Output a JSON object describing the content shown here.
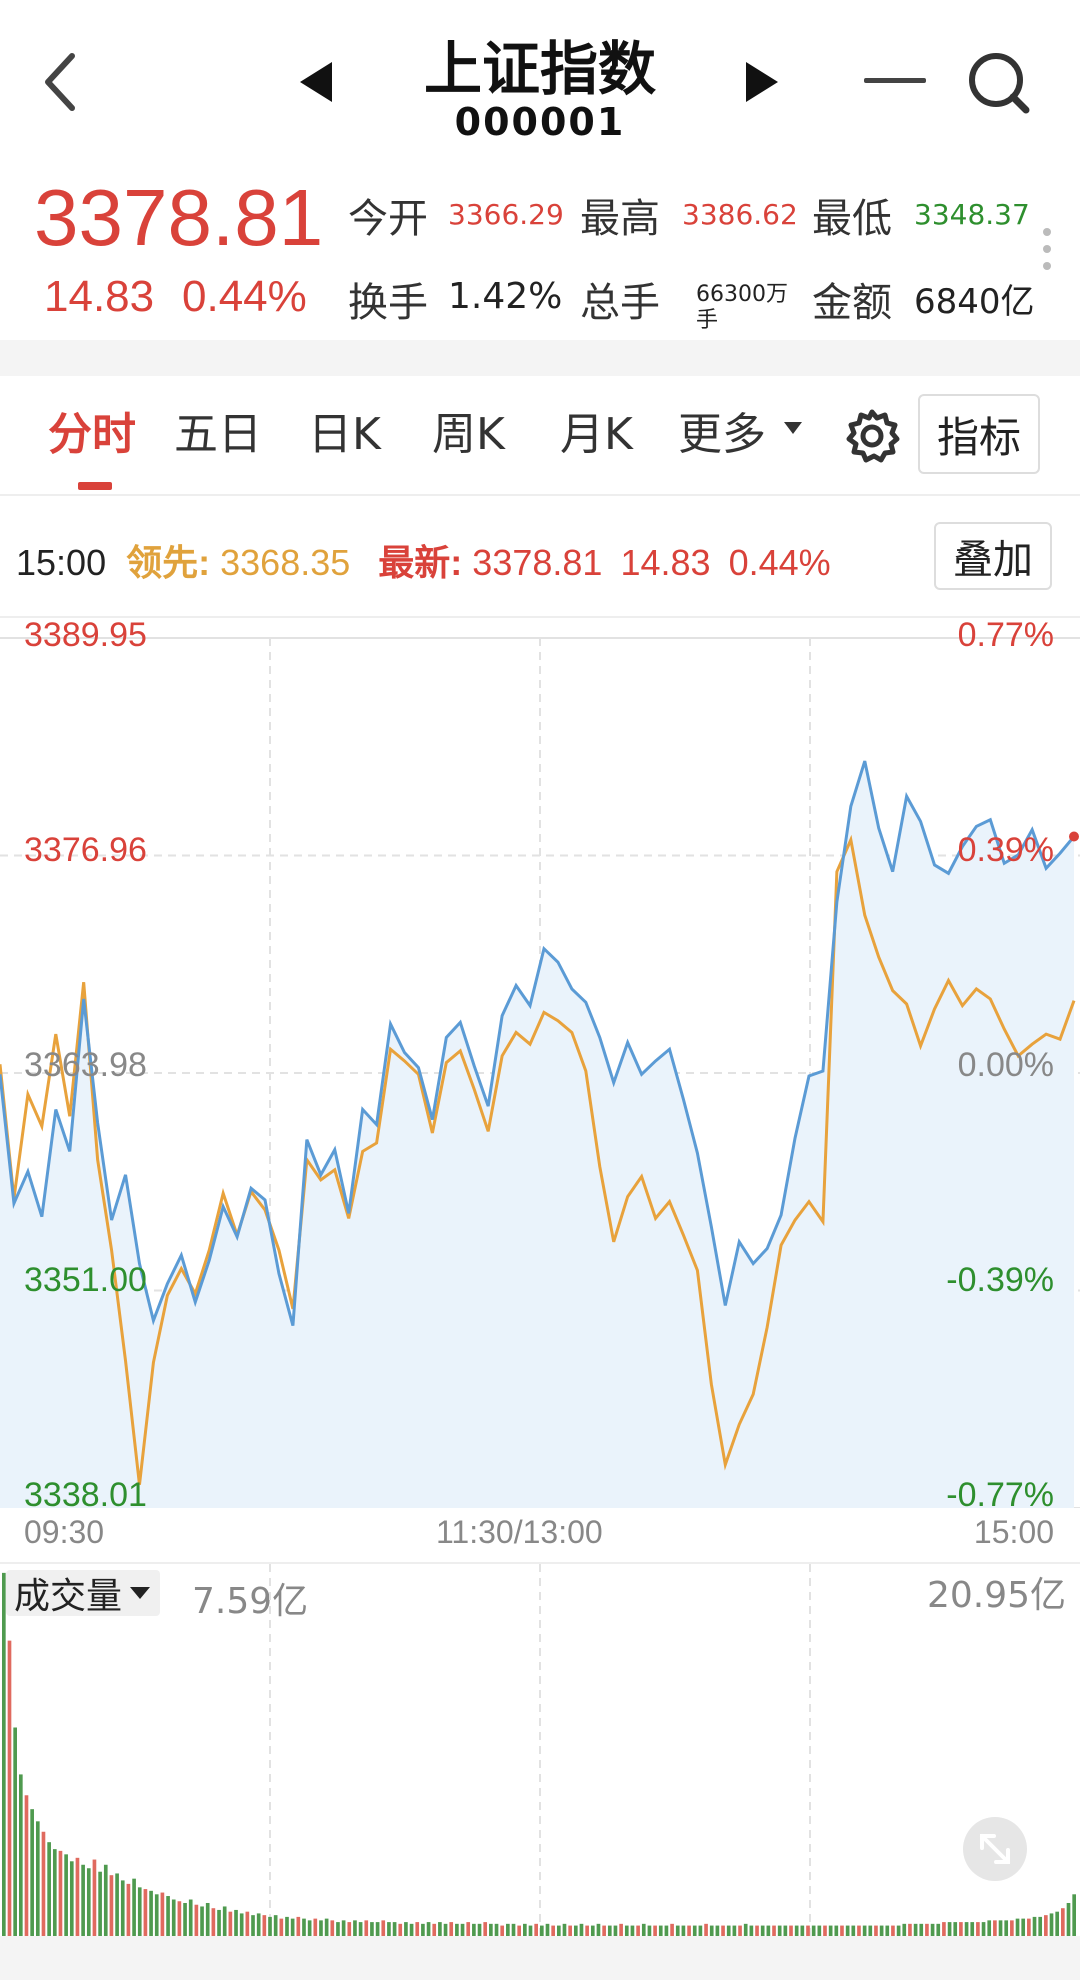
{
  "header": {
    "title": "上证指数",
    "code": "000001"
  },
  "quote": {
    "price": "3378.81",
    "change": "14.83",
    "change_pct": "0.44%",
    "stats": [
      {
        "label": "今开",
        "value": "3366.29",
        "color": "red"
      },
      {
        "label": "最高",
        "value": "3386.62",
        "color": "red"
      },
      {
        "label": "最低",
        "value": "3348.37",
        "color": "green"
      },
      {
        "label": "换手",
        "value": "1.42%",
        "color": "dark"
      },
      {
        "label": "总手",
        "value": "66300万手",
        "color": "dark"
      },
      {
        "label": "金额",
        "value": "6840亿",
        "color": "dark"
      }
    ]
  },
  "tabs": {
    "items": [
      "分时",
      "五日",
      "日K",
      "周K",
      "月K",
      "更多"
    ],
    "active": "分时",
    "indicator_label": "指标"
  },
  "info_bar": {
    "time": "15:00",
    "lead_label": "领先:",
    "lead_value": "3368.35",
    "latest_label": "最新:",
    "latest_value": "3378.81",
    "latest_change": "14.83",
    "latest_pct": "0.44%",
    "overlay_label": "叠加"
  },
  "chart_data": {
    "type": "line",
    "x_ticks": [
      "09:30",
      "11:30/13:00",
      "15:00"
    ],
    "y_ticks": [
      "3389.95",
      "3376.96",
      "3363.98",
      "3351.00",
      "3338.01"
    ],
    "y_pct_ticks": [
      "0.77%",
      "0.39%",
      "0.00%",
      "-0.39%",
      "-0.77%"
    ],
    "ylim": [
      3338.01,
      3389.95
    ],
    "prev_close": 3363.98,
    "series": [
      {
        "color": "#5b9bd5",
        "values": [
          3363.9,
          3356.2,
          3358.1,
          3355.4,
          3361.8,
          3359.3,
          3368.4,
          3361.0,
          3355.2,
          3357.9,
          3352.6,
          3349.2,
          3351.4,
          3353.1,
          3350.3,
          3352.8,
          3356.0,
          3354.2,
          3357.1,
          3356.4,
          3352.0,
          3348.9,
          3360.0,
          3357.9,
          3359.4,
          3355.6,
          3361.8,
          3360.9,
          3366.9,
          3365.2,
          3364.3,
          3361.2,
          3366.1,
          3367.0,
          3364.4,
          3362.0,
          3367.4,
          3369.2,
          3368.0,
          3371.4,
          3370.6,
          3369.0,
          3368.2,
          3366.1,
          3363.4,
          3365.8,
          3363.9,
          3364.7,
          3365.4,
          3362.4,
          3359.2,
          3354.8,
          3350.1,
          3353.9,
          3352.6,
          3353.5,
          3355.5,
          3360.1,
          3363.8,
          3364.1,
          3374.2,
          3379.9,
          3382.6,
          3378.6,
          3376.0,
          3380.5,
          3379.0,
          3376.4,
          3375.9,
          3377.5,
          3378.7,
          3379.1,
          3376.5,
          3377.0,
          3378.5,
          3376.2,
          3377.1,
          3378.1
        ]
      },
      {
        "color": "#e8a23c",
        "values": [
          3364.5,
          3356.5,
          3362.7,
          3360.8,
          3366.3,
          3361.4,
          3369.4,
          3358.8,
          3353.4,
          3346.8,
          3339.4,
          3346.7,
          3350.7,
          3352.3,
          3350.8,
          3353.4,
          3356.8,
          3354.3,
          3356.9,
          3355.8,
          3353.4,
          3349.9,
          3358.8,
          3357.6,
          3358.2,
          3355.3,
          3359.3,
          3359.8,
          3365.4,
          3364.7,
          3363.9,
          3360.4,
          3364.6,
          3365.3,
          3363.0,
          3360.5,
          3365.0,
          3366.4,
          3365.7,
          3367.6,
          3367.1,
          3366.4,
          3364.1,
          3358.4,
          3353.9,
          3356.6,
          3357.8,
          3355.3,
          3356.3,
          3354.3,
          3352.2,
          3345.4,
          3340.6,
          3343.0,
          3344.8,
          3348.8,
          3353.7,
          3355.2,
          3356.3,
          3355.1,
          3376.0,
          3377.9,
          3373.4,
          3370.9,
          3368.9,
          3368.1,
          3365.6,
          3367.8,
          3369.5,
          3368.0,
          3369.0,
          3368.4,
          3366.6,
          3365.0,
          3365.7,
          3366.3,
          3366.0,
          3368.3
        ]
      }
    ],
    "volume": {
      "label": "成交量",
      "left_value": "7.59亿",
      "max_value": "20.95亿",
      "bars": [
        20.9,
        17.0,
        12.0,
        9.3,
        8.1,
        7.3,
        6.6,
        6.0,
        5.4,
        5.0,
        4.9,
        4.7,
        4.3,
        4.5,
        4.1,
        3.9,
        4.4,
        3.7,
        4.1,
        3.5,
        3.6,
        3.2,
        3.0,
        3.3,
        2.8,
        2.7,
        2.6,
        2.4,
        2.5,
        2.3,
        2.1,
        2.0,
        1.9,
        2.1,
        1.8,
        1.7,
        1.9,
        1.6,
        1.5,
        1.7,
        1.4,
        1.5,
        1.3,
        1.4,
        1.2,
        1.3,
        1.2,
        1.1,
        1.2,
        1.0,
        1.1,
        1.0,
        1.1,
        1.0,
        0.9,
        1.0,
        0.9,
        1.0,
        0.9,
        0.8,
        0.9,
        0.8,
        0.9,
        0.8,
        0.9,
        0.8,
        0.8,
        0.9,
        0.8,
        0.8,
        0.7,
        0.8,
        0.7,
        0.8,
        0.7,
        0.8,
        0.7,
        0.8,
        0.7,
        0.8,
        0.7,
        0.7,
        0.8,
        0.7,
        0.7,
        0.8,
        0.7,
        0.7,
        0.6,
        0.7,
        0.7,
        0.6,
        0.7,
        0.6,
        0.7,
        0.6,
        0.7,
        0.6,
        0.6,
        0.7,
        0.6,
        0.6,
        0.7,
        0.6,
        0.6,
        0.7,
        0.6,
        0.6,
        0.6,
        0.7,
        0.6,
        0.6,
        0.6,
        0.7,
        0.6,
        0.6,
        0.6,
        0.6,
        0.7,
        0.6,
        0.6,
        0.6,
        0.6,
        0.6,
        0.7,
        0.6,
        0.6,
        0.6,
        0.6,
        0.6,
        0.6,
        0.7,
        0.6,
        0.6,
        0.6,
        0.6,
        0.6,
        0.6,
        0.6,
        0.6,
        0.6,
        0.6,
        0.6,
        0.6,
        0.6,
        0.6,
        0.6,
        0.6,
        0.6,
        0.6,
        0.6,
        0.6,
        0.6,
        0.6,
        0.6,
        0.6,
        0.6,
        0.6,
        0.6,
        0.7,
        0.7,
        0.7,
        0.7,
        0.7,
        0.7,
        0.7,
        0.8,
        0.8,
        0.8,
        0.8,
        0.8,
        0.8,
        0.8,
        0.8,
        0.9,
        0.9,
        0.9,
        0.9,
        0.9,
        1.0,
        1.0,
        1.0,
        1.1,
        1.1,
        1.2,
        1.3,
        1.4,
        1.6,
        1.9,
        2.4
      ]
    }
  },
  "icons": {
    "back": "back-arrow-icon",
    "prev": "prev-triangle-icon",
    "next": "next-triangle-icon",
    "minus": "minus-icon",
    "search": "search-icon",
    "more": "more-dots-icon",
    "settings": "gear-icon",
    "expand": "expand-icon"
  },
  "colors": {
    "up": "#d9423a",
    "down": "#2e8f2e",
    "line_blue": "#5b9bd5",
    "line_gold": "#e8a23c",
    "area": "#eaf3fb"
  }
}
